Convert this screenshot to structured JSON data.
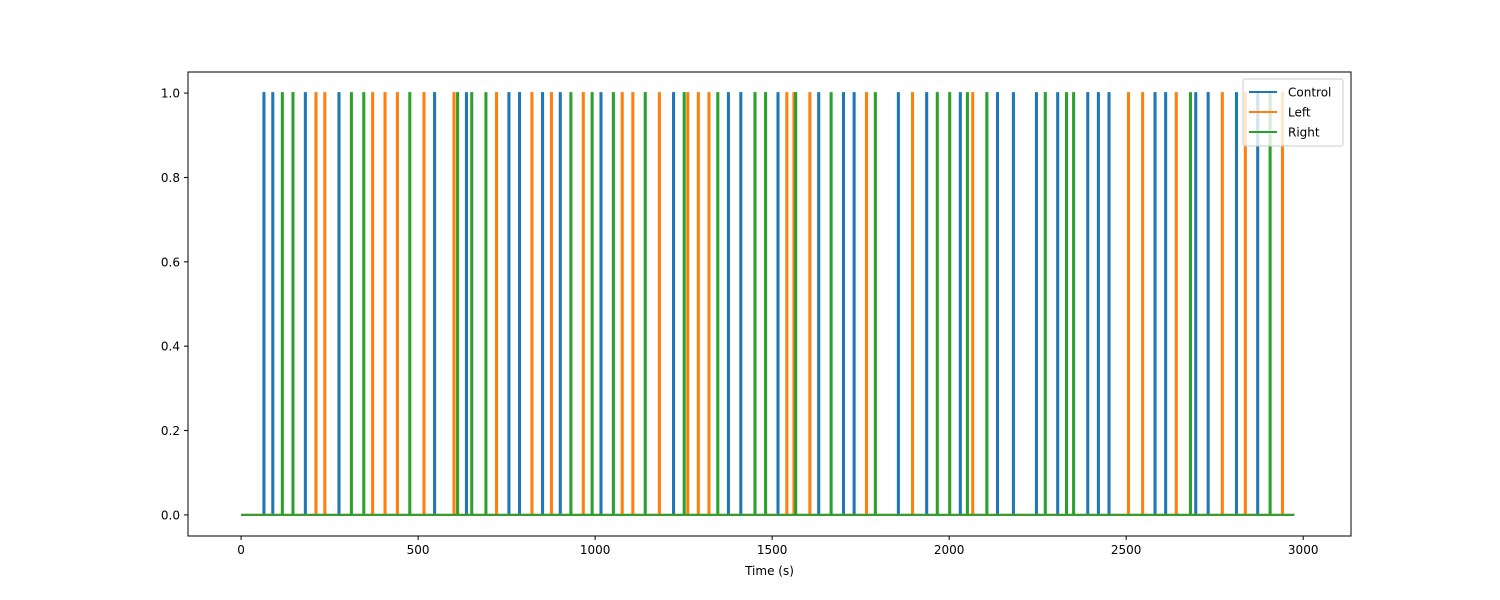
{
  "chart_data": {
    "type": "line",
    "title": "",
    "xlabel": "Time (s)",
    "ylabel": "",
    "xlim": [
      -150,
      3135
    ],
    "ylim": [
      -0.05,
      1.05
    ],
    "x_ticks": [
      0,
      500,
      1000,
      1500,
      2000,
      2500,
      3000
    ],
    "y_ticks": [
      0.0,
      0.2,
      0.4,
      0.6,
      0.8,
      1.0
    ],
    "x_tick_labels": [
      "0",
      "500",
      "1000",
      "1500",
      "2000",
      "2500",
      "3000"
    ],
    "y_tick_labels": [
      "0.0",
      "0.2",
      "0.4",
      "0.6",
      "0.8",
      "1.0"
    ],
    "x_range": [
      0,
      2975
    ],
    "pulse_width": 3,
    "grid": false,
    "legend_position": "top-right",
    "series": [
      {
        "name": "Control",
        "color": "#1f77b4",
        "pulse_onsets": [
          63,
          88,
          180,
          275,
          545,
          635,
          755,
          785,
          850,
          900,
          1015,
          1220,
          1375,
          1410,
          1515,
          1630,
          1700,
          1730,
          1855,
          1935,
          2030,
          2135,
          2180,
          2245,
          2305,
          2390,
          2420,
          2450,
          2580,
          2610,
          2695,
          2730,
          2810,
          2870
        ]
      },
      {
        "name": "Left",
        "color": "#ff7f0e",
        "pulse_onsets": [
          210,
          235,
          370,
          405,
          440,
          515,
          600,
          720,
          820,
          875,
          965,
          1075,
          1105,
          1180,
          1260,
          1290,
          1320,
          1540,
          1560,
          1605,
          1765,
          1895,
          2065,
          2505,
          2545,
          2640,
          2770,
          2835,
          2940
        ]
      },
      {
        "name": "Right",
        "color": "#2ca02c",
        "pulse_onsets": [
          115,
          145,
          310,
          345,
          475,
          610,
          650,
          690,
          930,
          990,
          1050,
          1140,
          1250,
          1345,
          1450,
          1480,
          1565,
          1665,
          1790,
          1965,
          2000,
          2050,
          2105,
          2270,
          2330,
          2350,
          2680,
          2905
        ]
      }
    ]
  }
}
